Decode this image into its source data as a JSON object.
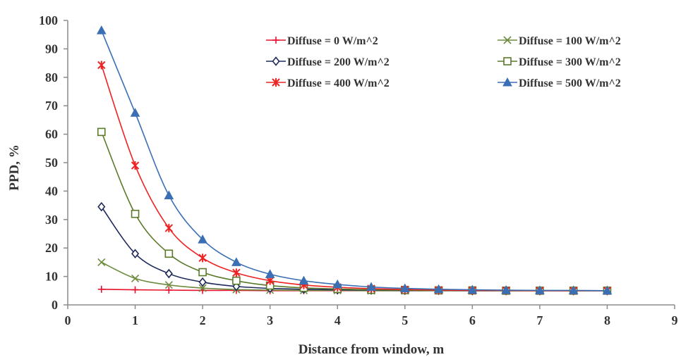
{
  "chart_data": {
    "type": "line",
    "xlabel": "Distance from window, m",
    "ylabel": "PPD, %",
    "xlim": [
      0,
      9
    ],
    "ylim": [
      0,
      100
    ],
    "xticks": [
      "0",
      "1",
      "2",
      "3",
      "4",
      "5",
      "6",
      "7",
      "8",
      "9"
    ],
    "yticks": [
      "0",
      "10",
      "20",
      "30",
      "40",
      "50",
      "60",
      "70",
      "80",
      "90",
      "100"
    ],
    "grid": false,
    "legend_position": "top-right",
    "x": [
      0.5,
      1,
      1.5,
      2,
      2.5,
      3,
      3.5,
      4,
      4.5,
      5,
      5.5,
      6,
      6.5,
      7,
      7.5,
      8
    ],
    "series": [
      {
        "name": "Diffuse = 0 W/m^2",
        "color": "#e8112d",
        "marker": "plus",
        "values": [
          5.5,
          5.3,
          5.2,
          5.1,
          5.1,
          5.0,
          5.0,
          5.0,
          5.0,
          5.0,
          5.0,
          5.0,
          5.0,
          5.0,
          5.0,
          5.0
        ]
      },
      {
        "name": "Diffuse = 100 W/m^2",
        "color": "#6e8b3d",
        "marker": "x",
        "values": [
          15.0,
          9.3,
          7.0,
          5.9,
          5.4,
          5.2,
          5.1,
          5.1,
          5.0,
          5.0,
          5.0,
          5.0,
          5.0,
          5.0,
          5.0,
          5.0
        ]
      },
      {
        "name": "Diffuse = 200 W/m^2",
        "color": "#1f2a5c",
        "marker": "diamond",
        "values": [
          34.5,
          18.0,
          11.0,
          8.0,
          6.5,
          5.8,
          5.5,
          5.3,
          5.2,
          5.1,
          5.1,
          5.0,
          5.0,
          5.0,
          5.0,
          5.0
        ]
      },
      {
        "name": "Diffuse = 300 W/m^2",
        "color": "#5a7a2a",
        "marker": "square",
        "values": [
          60.8,
          32.0,
          18.0,
          11.5,
          8.5,
          6.8,
          6.0,
          5.6,
          5.3,
          5.2,
          5.1,
          5.1,
          5.0,
          5.0,
          5.0,
          5.0
        ]
      },
      {
        "name": "Diffuse = 400 W/m^2",
        "color": "#ee2222",
        "marker": "asterisk",
        "values": [
          84.3,
          49.0,
          27.0,
          16.5,
          11.3,
          8.5,
          7.0,
          6.2,
          5.7,
          5.4,
          5.2,
          5.1,
          5.1,
          5.0,
          5.0,
          5.0
        ]
      },
      {
        "name": "Diffuse = 500 W/m^2",
        "color": "#3a6fb5",
        "marker": "triangle",
        "values": [
          96.5,
          67.5,
          38.5,
          23.0,
          15.0,
          10.8,
          8.5,
          7.2,
          6.3,
          5.8,
          5.5,
          5.3,
          5.2,
          5.1,
          5.1,
          5.0
        ]
      }
    ]
  }
}
